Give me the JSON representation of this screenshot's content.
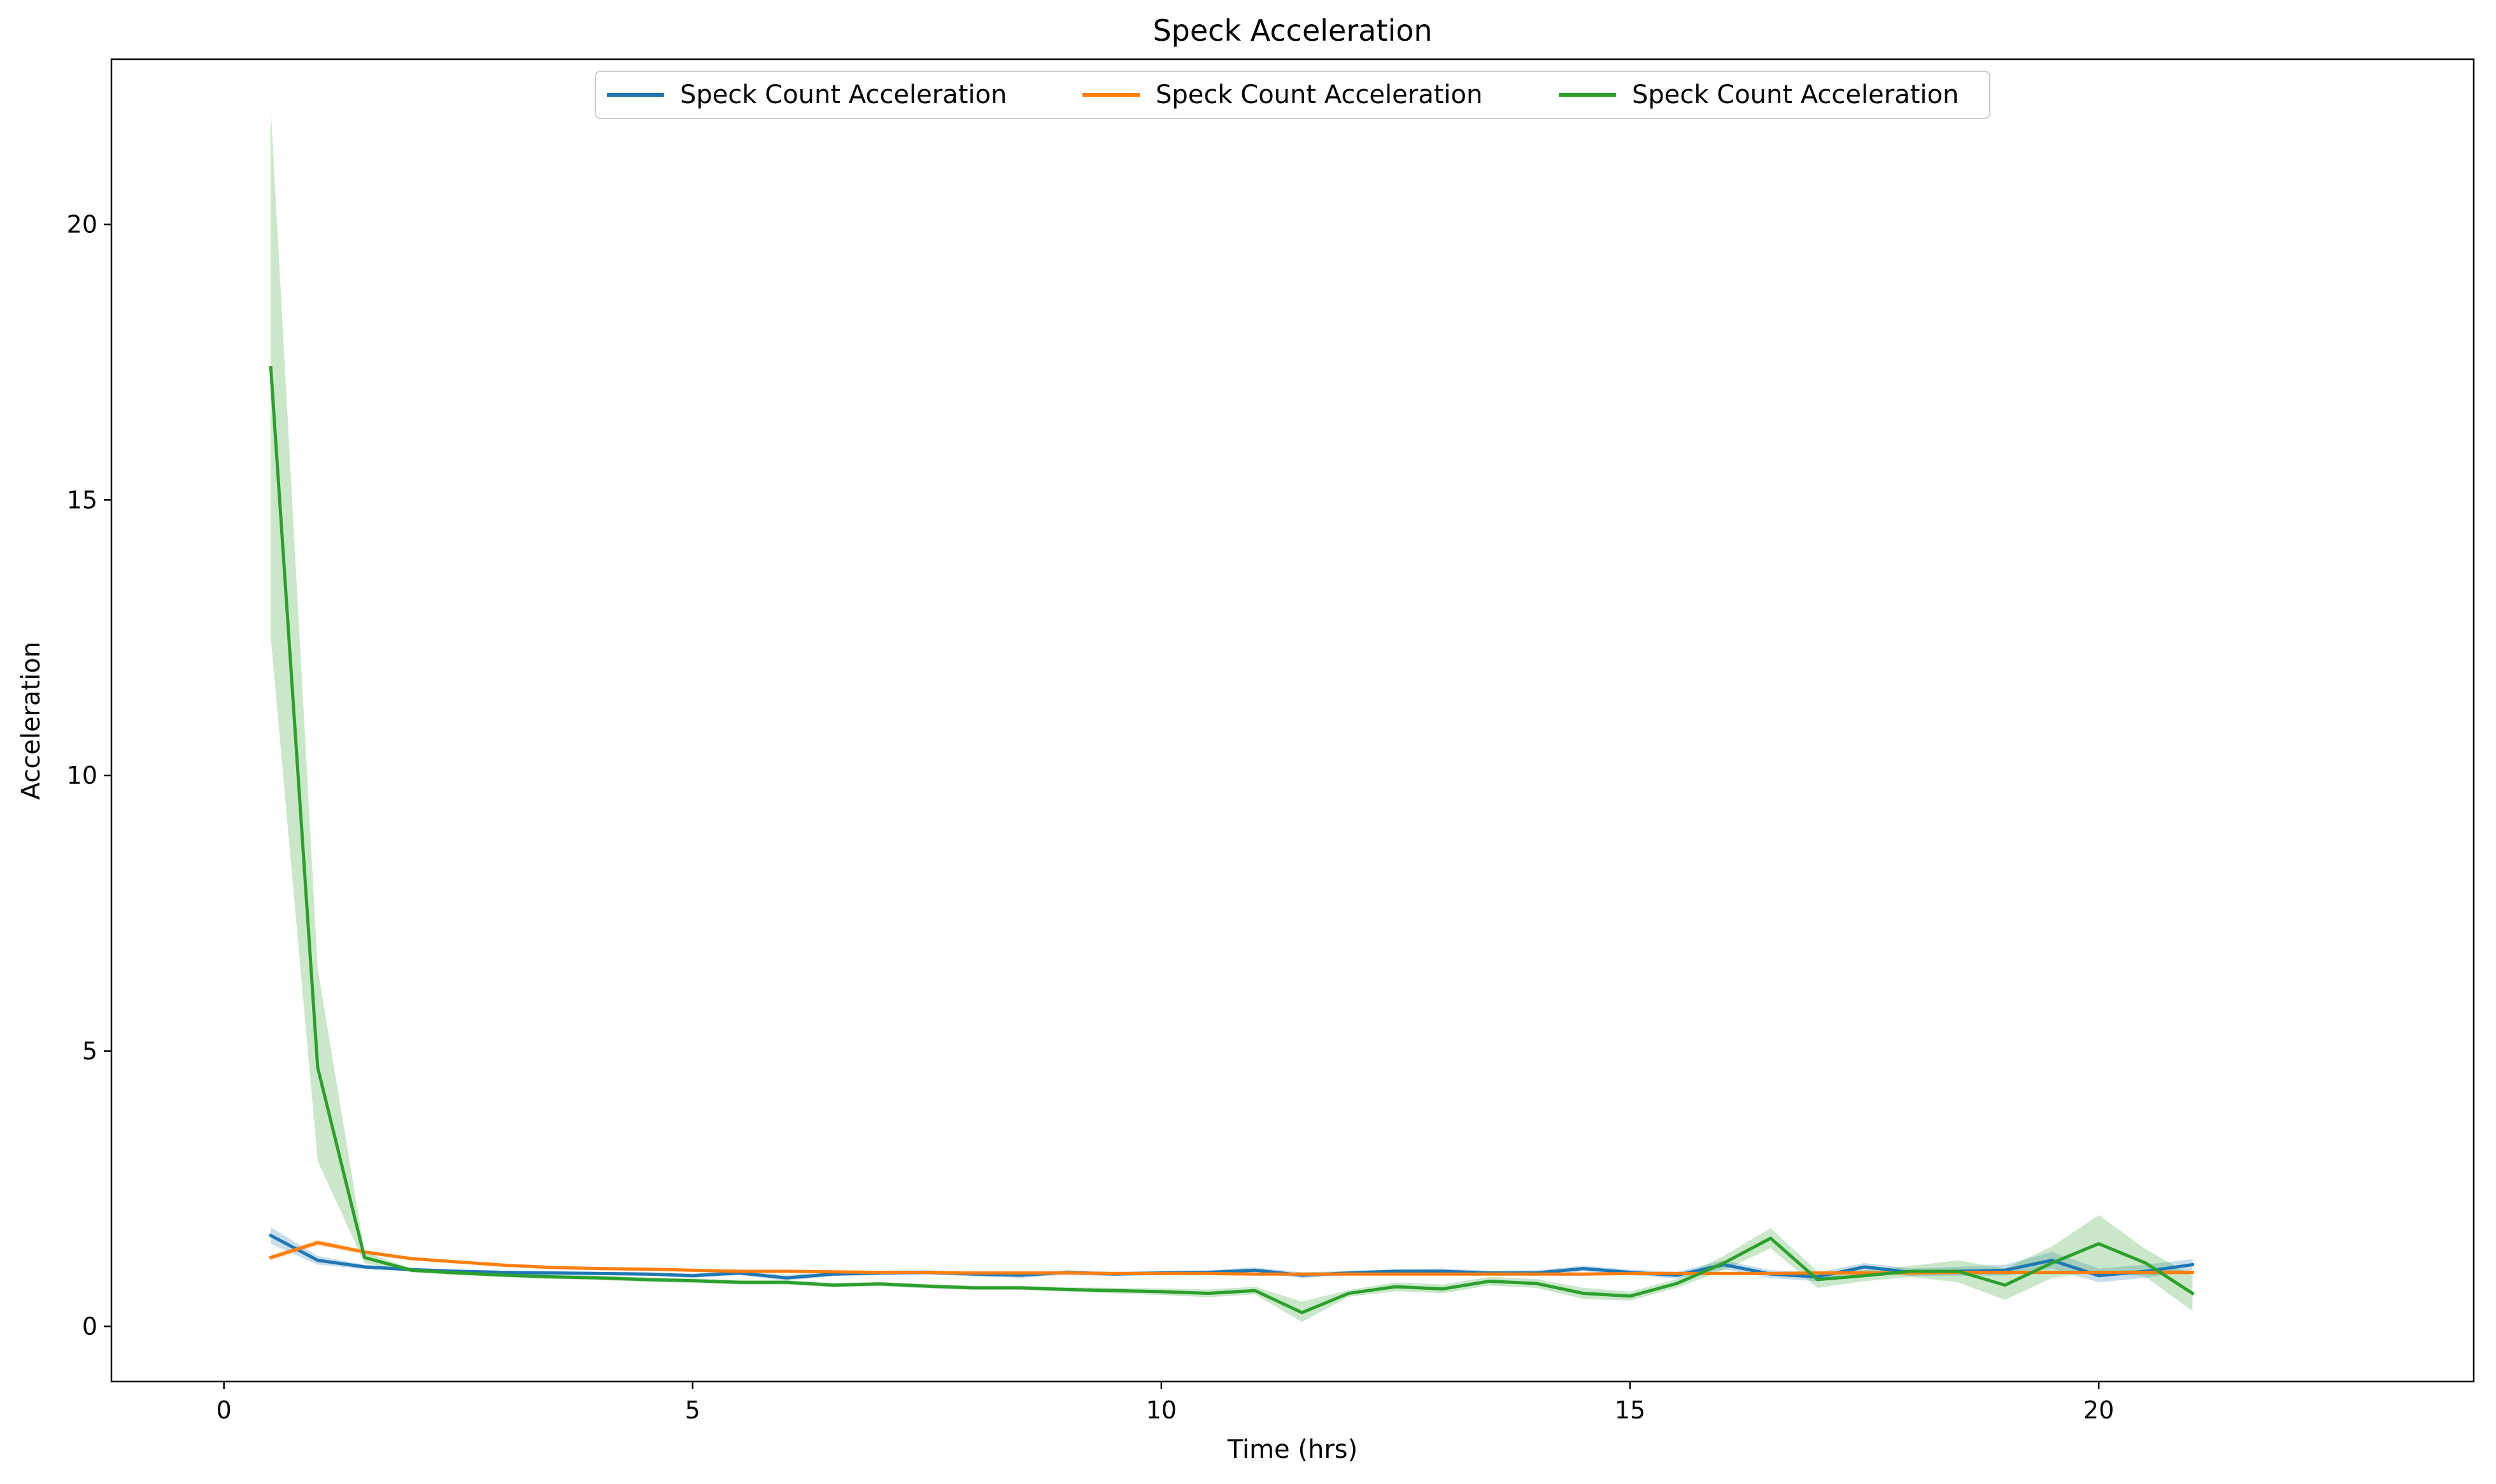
{
  "chart_data": {
    "type": "line",
    "title": "Speck Acceleration",
    "xlabel": "Time (hrs)",
    "ylabel": "Acceleration",
    "xlim": [
      -1.2,
      24.0
    ],
    "ylim": [
      -1.0,
      23.0
    ],
    "xticks": [
      0,
      5,
      10,
      15,
      20
    ],
    "yticks": [
      0,
      5,
      10,
      15,
      20
    ],
    "grid": false,
    "legend_position": "top-center",
    "x": [
      0.5,
      1.0,
      1.5,
      2.0,
      2.5,
      3.0,
      3.5,
      4.0,
      4.5,
      5.0,
      5.5,
      6.0,
      6.5,
      7.0,
      7.5,
      8.0,
      8.5,
      9.0,
      9.5,
      10.0,
      10.5,
      11.0,
      11.5,
      12.0,
      12.5,
      13.0,
      13.5,
      14.0,
      14.5,
      15.0,
      15.5,
      16.0,
      16.5,
      17.0,
      17.5,
      18.0,
      18.5,
      19.0,
      19.5,
      20.0,
      20.5,
      21.0
    ],
    "series": [
      {
        "name": "Speck Count Acceleration",
        "color": "#1f77b4",
        "values": [
          1.65,
          1.2,
          1.08,
          1.03,
          1.0,
          0.98,
          0.97,
          0.96,
          0.95,
          0.92,
          0.97,
          0.88,
          0.95,
          0.97,
          0.98,
          0.95,
          0.93,
          0.98,
          0.95,
          0.97,
          0.98,
          1.02,
          0.93,
          0.97,
          1.0,
          1.0,
          0.97,
          0.97,
          1.05,
          0.98,
          0.93,
          1.12,
          0.95,
          0.9,
          1.08,
          0.98,
          1.0,
          1.02,
          1.2,
          0.92,
          1.0,
          1.12
        ],
        "band_upper": [
          1.8,
          1.28,
          1.12,
          1.06,
          1.03,
          1.01,
          1.0,
          0.99,
          0.98,
          0.96,
          1.01,
          0.93,
          0.99,
          1.01,
          1.02,
          0.99,
          0.98,
          1.02,
          0.99,
          1.01,
          1.02,
          1.07,
          0.98,
          1.01,
          1.04,
          1.05,
          1.01,
          1.02,
          1.1,
          1.03,
          0.99,
          1.2,
          1.02,
          0.98,
          1.15,
          1.05,
          1.08,
          1.12,
          1.35,
          1.05,
          1.12,
          1.22
        ],
        "band_lower": [
          1.5,
          1.12,
          1.04,
          1.0,
          0.97,
          0.95,
          0.94,
          0.93,
          0.92,
          0.88,
          0.93,
          0.83,
          0.91,
          0.93,
          0.94,
          0.91,
          0.88,
          0.94,
          0.91,
          0.93,
          0.94,
          0.97,
          0.88,
          0.93,
          0.96,
          0.95,
          0.93,
          0.92,
          1.0,
          0.93,
          0.87,
          1.04,
          0.88,
          0.82,
          1.01,
          0.91,
          0.92,
          0.92,
          1.05,
          0.8,
          0.88,
          1.02
        ]
      },
      {
        "name": "Speck Count Acceleration",
        "color": "#ff7f0e",
        "values": [
          1.25,
          1.52,
          1.35,
          1.23,
          1.17,
          1.11,
          1.07,
          1.05,
          1.04,
          1.02,
          1.0,
          1.0,
          0.99,
          0.98,
          0.98,
          0.97,
          0.97,
          0.97,
          0.96,
          0.96,
          0.96,
          0.95,
          0.95,
          0.95,
          0.95,
          0.95,
          0.95,
          0.95,
          0.95,
          0.96,
          0.96,
          0.96,
          0.96,
          0.97,
          0.97,
          0.97,
          0.98,
          0.98,
          0.98,
          0.98,
          0.98,
          0.98
        ],
        "band_upper": [
          1.3,
          1.57,
          1.39,
          1.26,
          1.2,
          1.14,
          1.1,
          1.08,
          1.07,
          1.05,
          1.03,
          1.03,
          1.02,
          1.01,
          1.01,
          1.0,
          1.0,
          1.0,
          0.99,
          0.99,
          0.99,
          0.98,
          0.98,
          0.98,
          0.98,
          0.98,
          0.98,
          0.98,
          0.98,
          0.99,
          0.99,
          0.99,
          0.99,
          1.0,
          1.0,
          1.0,
          1.01,
          1.01,
          1.01,
          1.01,
          1.02,
          1.02
        ],
        "band_lower": [
          1.2,
          1.47,
          1.31,
          1.2,
          1.14,
          1.08,
          1.04,
          1.02,
          1.01,
          0.99,
          0.97,
          0.97,
          0.96,
          0.95,
          0.95,
          0.94,
          0.94,
          0.94,
          0.93,
          0.93,
          0.93,
          0.92,
          0.92,
          0.92,
          0.92,
          0.92,
          0.92,
          0.92,
          0.92,
          0.93,
          0.93,
          0.93,
          0.93,
          0.94,
          0.94,
          0.94,
          0.95,
          0.95,
          0.95,
          0.95,
          0.94,
          0.94
        ]
      },
      {
        "name": "Speck Count Acceleration",
        "color": "#2ca02c",
        "values": [
          17.4,
          4.7,
          1.25,
          1.02,
          0.97,
          0.93,
          0.9,
          0.88,
          0.85,
          0.83,
          0.8,
          0.8,
          0.75,
          0.77,
          0.73,
          0.7,
          0.7,
          0.67,
          0.65,
          0.63,
          0.6,
          0.65,
          0.25,
          0.6,
          0.72,
          0.68,
          0.82,
          0.78,
          0.6,
          0.55,
          0.78,
          1.15,
          1.6,
          0.85,
          0.92,
          1.0,
          1.0,
          0.75,
          1.15,
          1.5,
          1.15,
          0.6
        ],
        "band_upper": [
          22.1,
          6.5,
          1.35,
          1.06,
          1.01,
          0.97,
          0.94,
          0.92,
          0.89,
          0.87,
          0.84,
          0.84,
          0.79,
          0.81,
          0.77,
          0.74,
          0.74,
          0.71,
          0.7,
          0.69,
          0.67,
          0.72,
          0.45,
          0.66,
          0.8,
          0.76,
          0.9,
          0.86,
          0.7,
          0.63,
          0.86,
          1.28,
          1.78,
          1.0,
          1.02,
          1.1,
          1.2,
          1.05,
          1.45,
          2.02,
          1.4,
          0.92
        ],
        "band_lower": [
          12.5,
          3.0,
          1.15,
          0.98,
          0.93,
          0.89,
          0.86,
          0.84,
          0.81,
          0.79,
          0.76,
          0.76,
          0.71,
          0.73,
          0.69,
          0.66,
          0.66,
          0.63,
          0.6,
          0.57,
          0.53,
          0.58,
          0.08,
          0.54,
          0.64,
          0.6,
          0.74,
          0.7,
          0.5,
          0.47,
          0.7,
          1.02,
          1.42,
          0.7,
          0.82,
          0.9,
          0.8,
          0.48,
          0.88,
          1.0,
          0.9,
          0.28
        ]
      }
    ]
  }
}
